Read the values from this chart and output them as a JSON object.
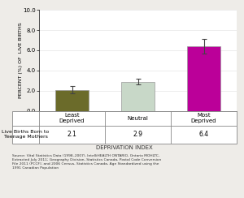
{
  "categories": [
    "Least\nDeprived",
    "Neutral",
    "Most\nDeprived"
  ],
  "values": [
    2.1,
    2.9,
    6.4
  ],
  "error_bars": [
    0.4,
    0.3,
    0.7
  ],
  "bar_colors": [
    "#6b6b2a",
    "#c8d8c8",
    "#bb0099"
  ],
  "ylim": [
    0,
    10.0
  ],
  "yticks": [
    0.0,
    2.0,
    4.0,
    6.0,
    8.0,
    10.0
  ],
  "ylabel": "PERCENT (%) OF  LIVE BIRTHS",
  "xlabel": "DEPRIVATION INDEX",
  "table_row_label": "Live Births Born to\nTeenage Mothers",
  "table_values": [
    "2.1",
    "2.9",
    "6.4"
  ],
  "source_text": "Source: Vital Statistics Data (1998–2007), IntelliHEALTH ONTARIO, Ontario MOHLTC,\nExtracted July 2011; Geography Division, Statistics Canada, Postal Code Conversion\nFile 2011 (PCCF); and 2006 Census, Statistics Canada, Age Standardized using the\n1991 Canadian Population",
  "background_color": "#eeece8",
  "plot_bg_color": "#ffffff"
}
